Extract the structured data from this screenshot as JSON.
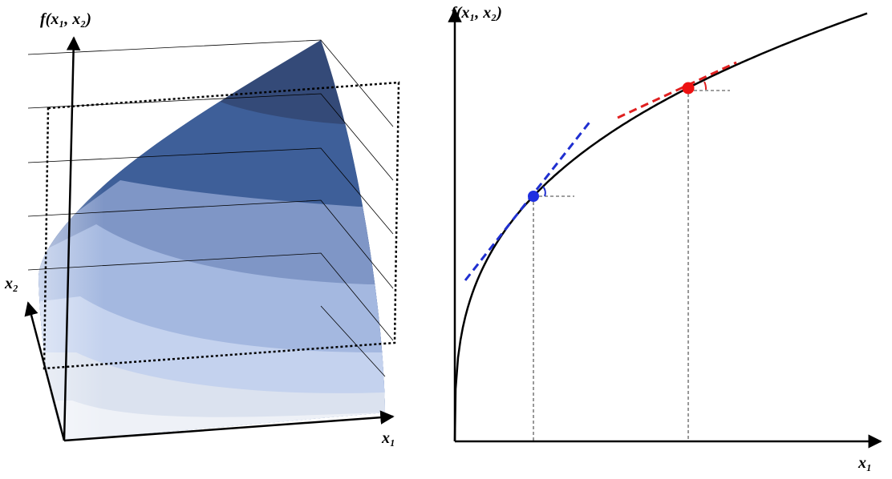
{
  "left_panel": {
    "z_label": "f(x₁, x₂)",
    "x2_label": "x₂",
    "x1_label": "x₁"
  },
  "right_panel": {
    "y_label": "f(x₁, x₂)",
    "x_label": "x₁"
  }
}
